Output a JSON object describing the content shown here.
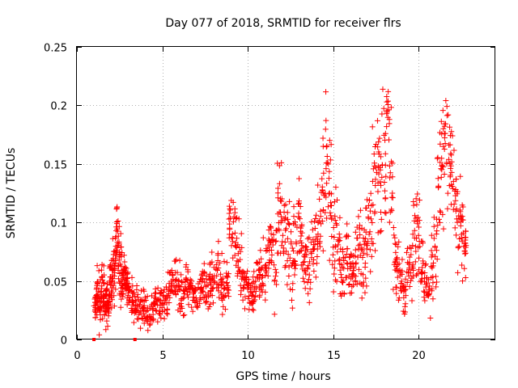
{
  "chart_data": {
    "type": "scatter",
    "title": "Day 077 of 2018, SRMTID for receiver flrs",
    "xlabel": "GPS time / hours",
    "ylabel": "SRMTID / TECUs",
    "xlim": [
      0,
      24.5
    ],
    "ylim": [
      0,
      0.25
    ],
    "xticks": [
      0,
      5,
      10,
      15,
      20
    ],
    "xtick_labels": [
      "0",
      "5",
      "10",
      "15",
      "20"
    ],
    "yticks": [
      0,
      0.05,
      0.1,
      0.15,
      0.2,
      0.25
    ],
    "ytick_labels": [
      "0",
      "0.05",
      "0.1",
      "0.15",
      "0.2",
      "0.25"
    ],
    "grid": true,
    "legend": "none",
    "marker": "plus",
    "color": "#ff0000",
    "series": [
      {
        "x": [
          1.0,
          1.1,
          1.2,
          1.3,
          1.4,
          1.5,
          1.6,
          1.7,
          1.8,
          1.9,
          2.0,
          2.1,
          2.2,
          2.3,
          2.4,
          2.5,
          2.6,
          2.7,
          2.8,
          2.9,
          3.0,
          3.1,
          3.3,
          3.5,
          3.7,
          3.9,
          4.1,
          4.3,
          4.5,
          4.7,
          4.9,
          5.1,
          5.3,
          5.5,
          5.7,
          5.9,
          6.1,
          6.3,
          6.5,
          6.7,
          6.9,
          7.1,
          7.3,
          7.5,
          7.7,
          7.9,
          8.1,
          8.3,
          8.5,
          8.7,
          8.9,
          9.1,
          9.3,
          9.5,
          9.7,
          9.9,
          10.1,
          10.3,
          10.5,
          10.7,
          10.9,
          11.1,
          11.3,
          11.5,
          11.7,
          11.9,
          12.1,
          12.3,
          12.5,
          12.7,
          12.9,
          13.1,
          13.3,
          13.5,
          13.7,
          13.9,
          14.1,
          14.3,
          14.5,
          14.7,
          14.9,
          15.1,
          15.3,
          15.5,
          15.7,
          15.9,
          16.1,
          16.3,
          16.5,
          16.7,
          16.9,
          17.1,
          17.3,
          17.5,
          17.7,
          17.9,
          18.1,
          18.3,
          18.5,
          18.7,
          18.9,
          19.1,
          19.3,
          19.5,
          19.7,
          19.9,
          20.1,
          20.3,
          20.5,
          20.7,
          20.9,
          21.1,
          21.3,
          21.5,
          21.7,
          21.9,
          22.1,
          22.3,
          22.5,
          22.7
        ],
        "y": [
          0.03,
          0.04,
          0.035,
          0.03,
          0.045,
          0.04,
          0.03,
          0.035,
          0.025,
          0.05,
          0.045,
          0.06,
          0.07,
          0.09,
          0.08,
          0.06,
          0.05,
          0.055,
          0.05,
          0.045,
          0.04,
          0.035,
          0.025,
          0.03,
          0.025,
          0.03,
          0.02,
          0.025,
          0.03,
          0.025,
          0.03,
          0.035,
          0.04,
          0.045,
          0.05,
          0.045,
          0.04,
          0.045,
          0.05,
          0.04,
          0.035,
          0.04,
          0.045,
          0.04,
          0.05,
          0.055,
          0.06,
          0.05,
          0.04,
          0.05,
          0.1,
          0.09,
          0.08,
          0.06,
          0.05,
          0.045,
          0.04,
          0.045,
          0.05,
          0.055,
          0.06,
          0.07,
          0.08,
          0.07,
          0.11,
          0.1,
          0.09,
          0.08,
          0.07,
          0.08,
          0.09,
          0.08,
          0.07,
          0.06,
          0.07,
          0.08,
          0.09,
          0.13,
          0.15,
          0.12,
          0.09,
          0.08,
          0.07,
          0.06,
          0.07,
          0.065,
          0.06,
          0.07,
          0.08,
          0.07,
          0.09,
          0.1,
          0.12,
          0.14,
          0.13,
          0.15,
          0.19,
          0.14,
          0.08,
          0.06,
          0.05,
          0.04,
          0.06,
          0.07,
          0.1,
          0.09,
          0.06,
          0.05,
          0.04,
          0.06,
          0.08,
          0.14,
          0.16,
          0.18,
          0.15,
          0.13,
          0.11,
          0.1,
          0.09,
          0.08
        ],
        "y_spread": [
          0.012,
          0.015,
          0.014,
          0.016,
          0.012,
          0.018,
          0.015,
          0.012,
          0.01,
          0.015,
          0.018,
          0.02,
          0.02,
          0.015,
          0.02,
          0.02,
          0.015,
          0.012,
          0.012,
          0.01,
          0.01,
          0.012,
          0.01,
          0.01,
          0.012,
          0.012,
          0.01,
          0.01,
          0.012,
          0.012,
          0.015,
          0.015,
          0.015,
          0.012,
          0.015,
          0.015,
          0.015,
          0.015,
          0.015,
          0.012,
          0.012,
          0.012,
          0.015,
          0.012,
          0.015,
          0.02,
          0.02,
          0.015,
          0.015,
          0.015,
          0.02,
          0.02,
          0.02,
          0.02,
          0.015,
          0.012,
          0.012,
          0.012,
          0.015,
          0.02,
          0.02,
          0.025,
          0.025,
          0.03,
          0.04,
          0.03,
          0.03,
          0.03,
          0.03,
          0.03,
          0.03,
          0.025,
          0.025,
          0.02,
          0.025,
          0.03,
          0.03,
          0.04,
          0.04,
          0.04,
          0.035,
          0.03,
          0.025,
          0.02,
          0.02,
          0.02,
          0.02,
          0.025,
          0.025,
          0.025,
          0.03,
          0.035,
          0.04,
          0.04,
          0.04,
          0.04,
          0.03,
          0.04,
          0.03,
          0.02,
          0.015,
          0.015,
          0.02,
          0.025,
          0.04,
          0.03,
          0.02,
          0.015,
          0.015,
          0.02,
          0.03,
          0.04,
          0.04,
          0.03,
          0.04,
          0.04,
          0.03,
          0.03,
          0.025,
          0.02
        ]
      },
      {
        "x": [
          1.0,
          3.4
        ],
        "y": [
          0.0,
          0.0
        ]
      }
    ]
  }
}
